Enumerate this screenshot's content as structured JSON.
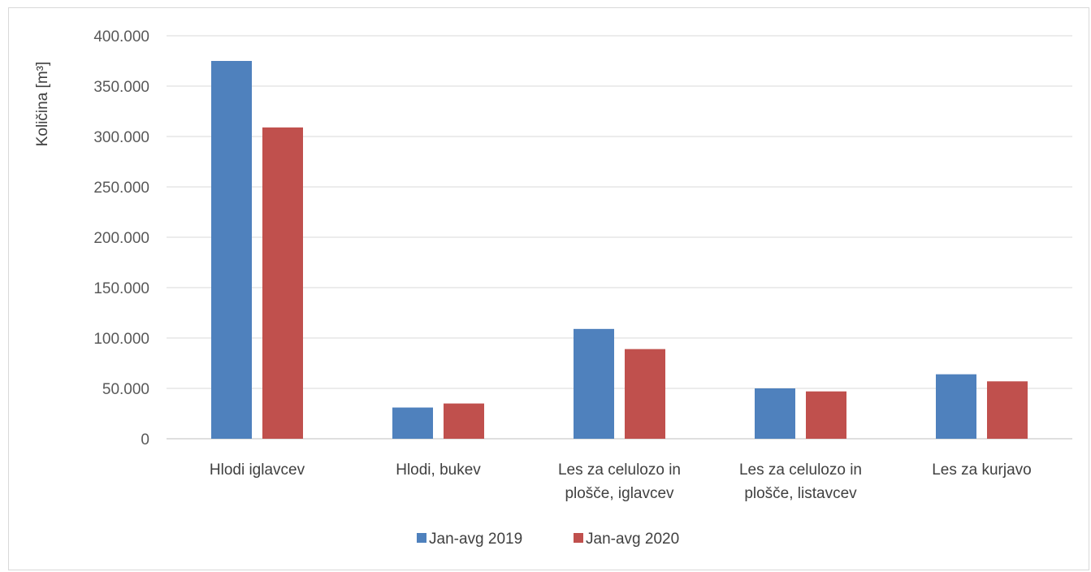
{
  "chart_data": {
    "type": "bar",
    "ylabel": "Količina [m³]",
    "ylim": [
      0,
      400000
    ],
    "yticks": [
      "0",
      "50.000",
      "100.000",
      "150.000",
      "200.000",
      "250.000",
      "300.000",
      "350.000",
      "400.000"
    ],
    "ytick_values": [
      0,
      50000,
      100000,
      150000,
      200000,
      250000,
      300000,
      350000,
      400000
    ],
    "categories": [
      [
        "Hlodi iglavcev"
      ],
      [
        "Hlodi, bukev"
      ],
      [
        "Les za celulozo in",
        "plošče, iglavcev"
      ],
      [
        "Les za celulozo in",
        "plošče, listavcev"
      ],
      [
        "Les za kurjavo"
      ]
    ],
    "series": [
      {
        "name": "Jan-avg 2019",
        "color": "#4f81bd",
        "values": [
          375000,
          31000,
          109000,
          50000,
          64000
        ]
      },
      {
        "name": "Jan-avg 2020",
        "color": "#c0504d",
        "values": [
          309000,
          35000,
          89000,
          47000,
          57000
        ]
      }
    ],
    "grid": true,
    "legend": "bottom"
  }
}
